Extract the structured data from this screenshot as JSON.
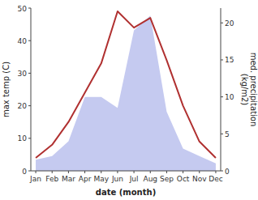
{
  "chart_data": {
    "type": "line",
    "xlabel": "date (month)",
    "ylabel": "max temp (C)",
    "y2label": "med. precipitation\n(kg/m2)",
    "categories": [
      "Jan",
      "Feb",
      "Mar",
      "Apr",
      "May",
      "Jun",
      "Jul",
      "Aug",
      "Sep",
      "Oct",
      "Nov",
      "Dec"
    ],
    "series": [
      {
        "type": "area",
        "axis": "y2",
        "color": "#c5caf0",
        "values": [
          1.5,
          2,
          4,
          10,
          10,
          8.5,
          19,
          21,
          8,
          3,
          2,
          1
        ]
      },
      {
        "type": "line",
        "color": "#b03030",
        "values": [
          4,
          8,
          15,
          24,
          33,
          49,
          44,
          47,
          34,
          20,
          9,
          4
        ]
      }
    ],
    "ylim": [
      0,
      50
    ],
    "yticks": [
      0,
      10,
      20,
      30,
      40,
      50
    ],
    "y2lim": [
      0,
      22
    ],
    "y2ticks": [
      0,
      5,
      10,
      15,
      20
    ],
    "grid": false
  }
}
